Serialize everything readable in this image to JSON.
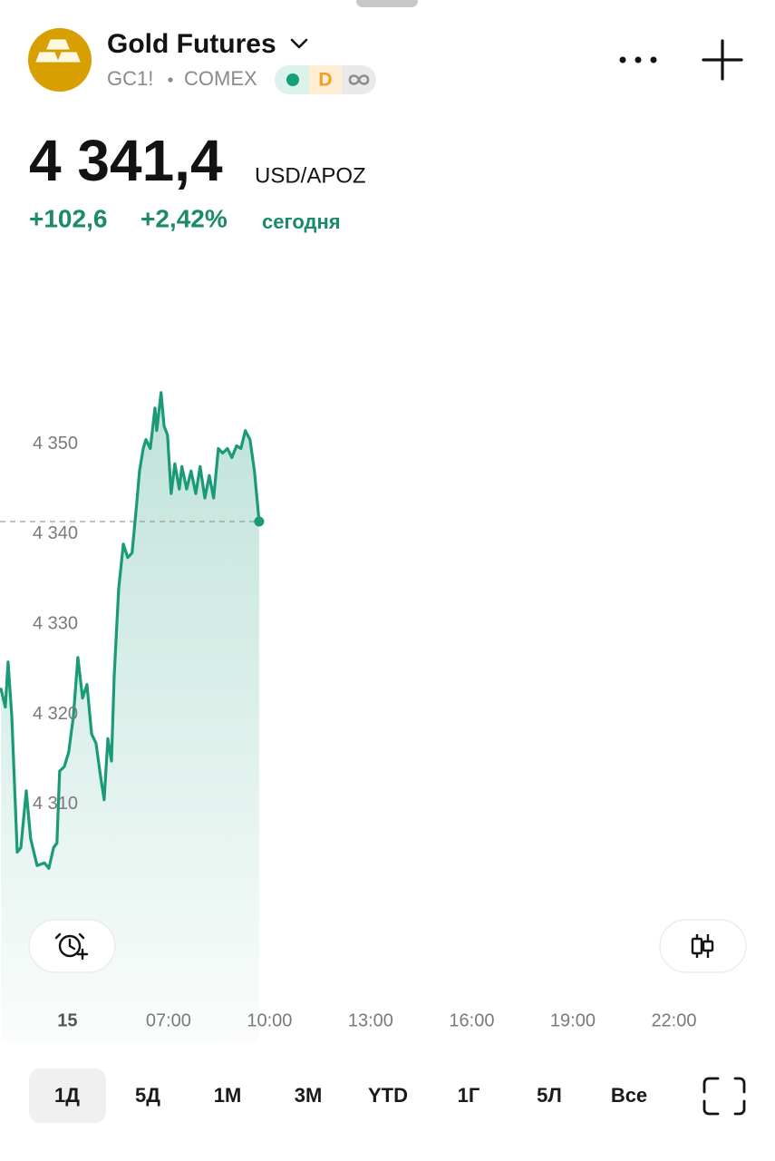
{
  "header": {
    "title": "Gold Futures",
    "symbol": "GC1!",
    "exchange": "COMEX",
    "badge": "D"
  },
  "quote": {
    "price": "4 341,4",
    "unit": "USD/APOZ",
    "change": "+102,6",
    "change_percent": "+2,42%",
    "period": "сегодня"
  },
  "chart_data": {
    "type": "line",
    "x": [
      2.03,
      2.16,
      2.24,
      2.35,
      2.51,
      2.62,
      2.78,
      2.91,
      3.1,
      3.32,
      3.45,
      3.59,
      3.69,
      3.77,
      3.91,
      4.04,
      4.18,
      4.31,
      4.45,
      4.58,
      4.72,
      4.85,
      4.98,
      5.09,
      5.2,
      5.31,
      5.39,
      5.52,
      5.66,
      5.79,
      5.92,
      6.06,
      6.14,
      6.25,
      6.33,
      6.46,
      6.6,
      6.65,
      6.78,
      6.87,
      6.97,
      7.08,
      7.19,
      7.32,
      7.4,
      7.54,
      7.67,
      7.81,
      7.94,
      8.08,
      8.21,
      8.34,
      8.48,
      8.61,
      8.75,
      8.88,
      9.02,
      9.15,
      9.28,
      9.42,
      9.55,
      9.69
    ],
    "series": [
      {
        "color": "#1a9a77",
        "values": [
          4322.8,
          4320.8,
          4325.8,
          4319.8,
          4304.7,
          4305.2,
          4311.5,
          4306.2,
          4303.2,
          4303.5,
          4302.9,
          4305.2,
          4305.7,
          4313.7,
          4314.2,
          4315.8,
          4319.8,
          4326.3,
          4321.8,
          4323.3,
          4317.8,
          4316.8,
          4313.2,
          4310.5,
          4317.3,
          4314.8,
          4324.3,
          4333.9,
          4338.9,
          4337.4,
          4337.9,
          4343.5,
          4347.0,
          4349.5,
          4350.5,
          4349.5,
          4354.0,
          4351.5,
          4355.7,
          4352.0,
          4351.0,
          4344.5,
          4347.8,
          4345.0,
          4347.5,
          4345.0,
          4347.0,
          4344.5,
          4347.5,
          4344.0,
          4346.5,
          4344.0,
          4349.5,
          4349.0,
          4349.5,
          4348.5,
          4349.8,
          4349.5,
          4351.5,
          4350.5,
          4347.0,
          4341.4
        ]
      }
    ],
    "xlim": [
      2,
      25
    ],
    "ylim": [
      4283.5,
      4371.1
    ],
    "yticks": [
      {
        "value": 4350,
        "label": "4 350"
      },
      {
        "value": 4340,
        "label": "4 340"
      },
      {
        "value": 4330,
        "label": "4 330"
      },
      {
        "value": 4320,
        "label": "4 320"
      },
      {
        "value": 4310,
        "label": "4 310"
      }
    ],
    "xticks": [
      {
        "value": 4,
        "label": "15"
      },
      {
        "value": 7,
        "label": "07:00"
      },
      {
        "value": 10,
        "label": "10:00"
      },
      {
        "value": 13,
        "label": "13:00"
      },
      {
        "value": 16,
        "label": "16:00"
      },
      {
        "value": 19,
        "label": "19:00"
      },
      {
        "value": 22,
        "label": "22:00"
      }
    ]
  },
  "periods": [
    "1Д",
    "5Д",
    "1М",
    "3М",
    "YTD",
    "1Г",
    "5Л",
    "Все"
  ],
  "selected_period": 0
}
